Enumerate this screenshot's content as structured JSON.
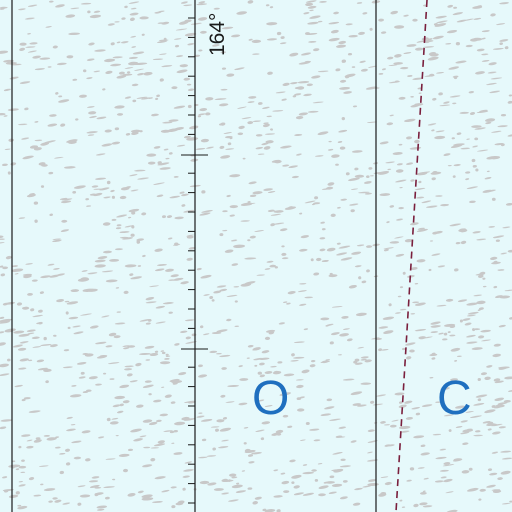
{
  "map": {
    "longitude_label": "164°",
    "ocean_label_letters": [
      "O",
      "C"
    ]
  },
  "colors": {
    "water": "#e6f9fb",
    "ice_texture": "#c8c8c8",
    "graticule": "#1a1a1a",
    "boundary_dashed": "#7a1f3d",
    "ocean_label": "#1f6fbf"
  },
  "legend_semantics": {
    "texture": "pack-ice-stipple",
    "dashed_line": "maritime-boundary"
  }
}
